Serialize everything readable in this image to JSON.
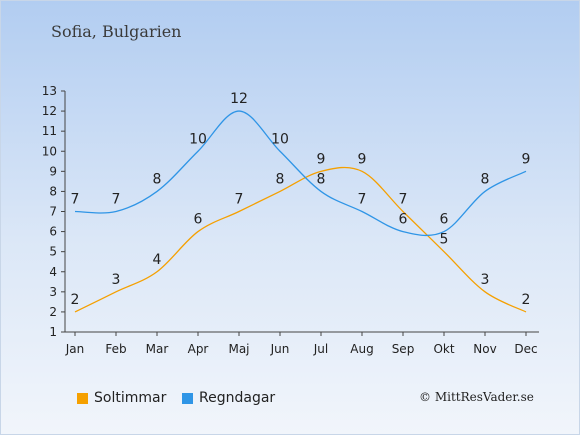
{
  "title": "Sofia, Bulgarien",
  "credit": "© MittResVader.se",
  "chart_data": {
    "type": "line",
    "categories": [
      "Jan",
      "Feb",
      "Mar",
      "Apr",
      "Maj",
      "Jun",
      "Jul",
      "Aug",
      "Sep",
      "Okt",
      "Nov",
      "Dec"
    ],
    "ylim": [
      1,
      13
    ],
    "yticks": [
      1,
      2,
      3,
      4,
      5,
      6,
      7,
      8,
      9,
      10,
      11,
      12,
      13
    ],
    "grid": false,
    "legend_position": "bottom",
    "series": [
      {
        "name": "Soltimmar",
        "color": "#f5a000",
        "values": [
          2,
          3,
          4,
          6,
          7,
          8,
          9,
          9,
          7,
          5,
          3,
          2
        ]
      },
      {
        "name": "Regndagar",
        "color": "#2f95e6",
        "values": [
          7,
          7,
          8,
          10,
          12,
          10,
          8,
          7,
          6,
          6,
          8,
          9
        ]
      }
    ]
  }
}
